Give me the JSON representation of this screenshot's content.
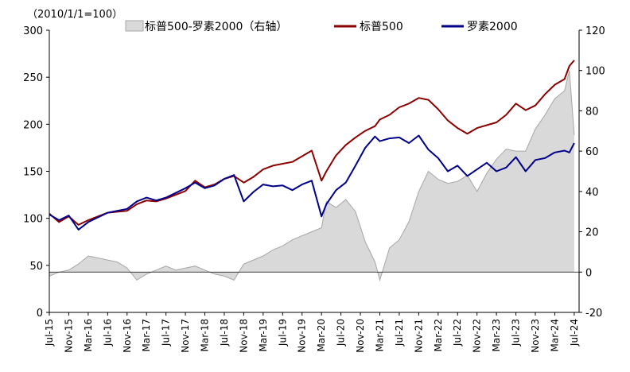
{
  "chart_data": {
    "type": "line",
    "unit_note": "（2010/1/1=100）",
    "legend": [
      "标普500-罗素2000（右轴）",
      "标普500",
      "罗素2000"
    ],
    "legend_placement": "top",
    "grid": false,
    "left_axis": {
      "ylim": [
        0,
        300
      ],
      "ticks": [
        "0",
        "50",
        "100",
        "150",
        "200",
        "250",
        "300"
      ]
    },
    "right_axis": {
      "ylim": [
        -20,
        120
      ],
      "ticks": [
        "-20",
        "0",
        "20",
        "40",
        "60",
        "80",
        "100",
        "120"
      ]
    },
    "x_ticks": [
      "Jul-15",
      "Nov-15",
      "Mar-16",
      "Jul-16",
      "Nov-16",
      "Mar-17",
      "Jul-17",
      "Nov-17",
      "Mar-18",
      "Jul-18",
      "Nov-18",
      "Mar-19",
      "Jul-19",
      "Nov-19",
      "Mar-20",
      "Jul-20",
      "Nov-20",
      "Mar-21",
      "Jul-21",
      "Nov-21",
      "Mar-22",
      "Jul-22",
      "Nov-22",
      "Mar-23",
      "Jul-23",
      "Nov-23",
      "Mar-24",
      "Jul-24"
    ],
    "series": [
      {
        "name": "标普500-罗素2000（右轴）",
        "type": "area",
        "axis": "right",
        "color": "#a6a6a6",
        "fill": "#d9d9d9",
        "x": [
          "2015-07",
          "2015-09",
          "2015-11",
          "2016-01",
          "2016-03",
          "2016-05",
          "2016-07",
          "2016-09",
          "2016-11",
          "2017-01",
          "2017-03",
          "2017-05",
          "2017-07",
          "2017-09",
          "2017-11",
          "2018-01",
          "2018-03",
          "2018-05",
          "2018-07",
          "2018-09",
          "2018-11",
          "2019-01",
          "2019-03",
          "2019-05",
          "2019-07",
          "2019-09",
          "2019-11",
          "2020-01",
          "2020-03",
          "2020-04",
          "2020-06",
          "2020-08",
          "2020-10",
          "2020-12",
          "2021-02",
          "2021-03",
          "2021-05",
          "2021-07",
          "2021-09",
          "2021-11",
          "2022-01",
          "2022-03",
          "2022-05",
          "2022-07",
          "2022-09",
          "2022-11",
          "2023-01",
          "2023-03",
          "2023-05",
          "2023-07",
          "2023-09",
          "2023-11",
          "2024-01",
          "2024-03",
          "2024-05",
          "2024-06",
          "2024-07"
        ],
        "values": [
          -2,
          0,
          1,
          4,
          8,
          7,
          6,
          5,
          2,
          -4,
          -1,
          1,
          3,
          1,
          2,
          3,
          1,
          -1,
          -2,
          -4,
          4,
          6,
          8,
          11,
          13,
          16,
          18,
          20,
          22,
          35,
          32,
          36,
          30,
          15,
          5,
          -4,
          12,
          16,
          25,
          40,
          50,
          46,
          44,
          45,
          48,
          40,
          49,
          56,
          61,
          60,
          60,
          71,
          78,
          86,
          90,
          100,
          68
        ]
      },
      {
        "name": "标普500",
        "type": "line",
        "axis": "left",
        "color": "#8b0000",
        "x": [
          "2015-07",
          "2015-09",
          "2015-11",
          "2016-01",
          "2016-03",
          "2016-05",
          "2016-07",
          "2016-09",
          "2016-11",
          "2017-01",
          "2017-03",
          "2017-05",
          "2017-07",
          "2017-09",
          "2017-11",
          "2018-01",
          "2018-03",
          "2018-05",
          "2018-07",
          "2018-09",
          "2018-11",
          "2019-01",
          "2019-03",
          "2019-05",
          "2019-07",
          "2019-09",
          "2019-11",
          "2020-01",
          "2020-03",
          "2020-04",
          "2020-06",
          "2020-08",
          "2020-10",
          "2020-12",
          "2021-02",
          "2021-03",
          "2021-05",
          "2021-07",
          "2021-09",
          "2021-11",
          "2022-01",
          "2022-03",
          "2022-05",
          "2022-07",
          "2022-09",
          "2022-11",
          "2023-01",
          "2023-03",
          "2023-05",
          "2023-07",
          "2023-09",
          "2023-11",
          "2024-01",
          "2024-03",
          "2024-05",
          "2024-06",
          "2024-07"
        ],
        "values": [
          105,
          96,
          102,
          93,
          98,
          102,
          106,
          107,
          108,
          115,
          119,
          118,
          121,
          125,
          129,
          140,
          133,
          136,
          142,
          145,
          138,
          144,
          152,
          156,
          158,
          160,
          166,
          172,
          140,
          150,
          167,
          178,
          186,
          193,
          198,
          205,
          210,
          218,
          222,
          228,
          226,
          216,
          204,
          196,
          190,
          196,
          199,
          202,
          210,
          222,
          215,
          220,
          232,
          242,
          248,
          262,
          268
        ]
      },
      {
        "name": "罗素2000",
        "type": "line",
        "axis": "left",
        "color": "#00008b",
        "x": [
          "2015-07",
          "2015-09",
          "2015-11",
          "2016-01",
          "2016-03",
          "2016-05",
          "2016-07",
          "2016-09",
          "2016-11",
          "2017-01",
          "2017-03",
          "2017-05",
          "2017-07",
          "2017-09",
          "2017-11",
          "2018-01",
          "2018-03",
          "2018-05",
          "2018-07",
          "2018-09",
          "2018-11",
          "2019-01",
          "2019-03",
          "2019-05",
          "2019-07",
          "2019-09",
          "2019-11",
          "2020-01",
          "2020-03",
          "2020-04",
          "2020-06",
          "2020-08",
          "2020-10",
          "2020-12",
          "2021-02",
          "2021-03",
          "2021-05",
          "2021-07",
          "2021-09",
          "2021-11",
          "2022-01",
          "2022-03",
          "2022-05",
          "2022-07",
          "2022-09",
          "2022-11",
          "2023-01",
          "2023-03",
          "2023-05",
          "2023-07",
          "2023-09",
          "2023-11",
          "2024-01",
          "2024-03",
          "2024-05",
          "2024-06",
          "2024-07"
        ],
        "values": [
          104,
          98,
          103,
          88,
          96,
          101,
          106,
          108,
          110,
          118,
          122,
          119,
          122,
          127,
          132,
          138,
          132,
          135,
          142,
          146,
          118,
          128,
          136,
          134,
          135,
          130,
          136,
          140,
          102,
          115,
          130,
          138,
          156,
          175,
          187,
          182,
          185,
          186,
          180,
          188,
          173,
          164,
          150,
          156,
          145,
          152,
          159,
          150,
          154,
          165,
          150,
          162,
          164,
          170,
          172,
          170,
          180
        ]
      }
    ]
  }
}
